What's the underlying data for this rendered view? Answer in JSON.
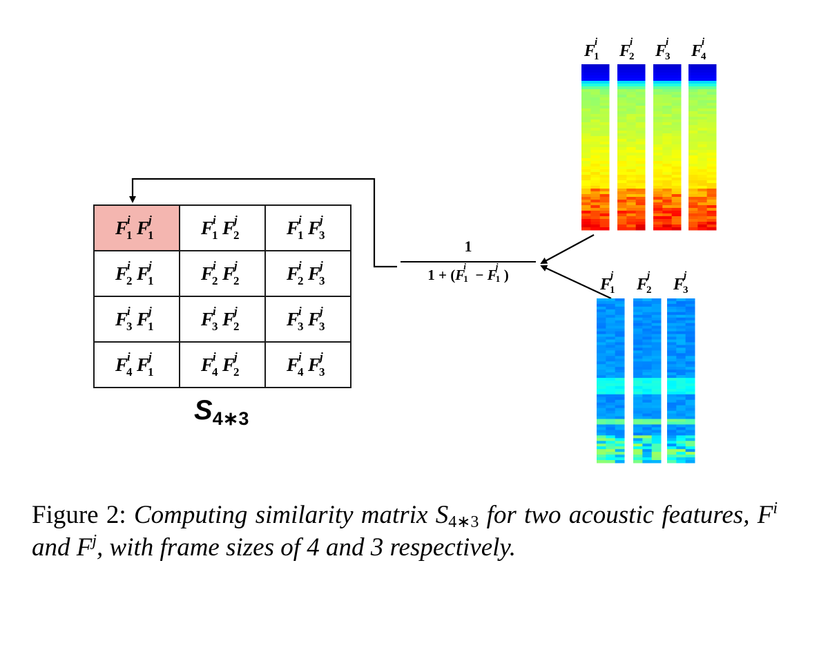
{
  "figure": {
    "matrix": {
      "rows": [
        [
          {
            "i": "1",
            "j": "1"
          },
          {
            "i": "1",
            "j": "2"
          },
          {
            "i": "1",
            "j": "3"
          }
        ],
        [
          {
            "i": "2",
            "j": "1"
          },
          {
            "i": "2",
            "j": "2"
          },
          {
            "i": "2",
            "j": "3"
          }
        ],
        [
          {
            "i": "3",
            "j": "1"
          },
          {
            "i": "3",
            "j": "2"
          },
          {
            "i": "3",
            "j": "3"
          }
        ],
        [
          {
            "i": "4",
            "j": "1"
          },
          {
            "i": "4",
            "j": "2"
          },
          {
            "i": "4",
            "j": "3"
          }
        ]
      ],
      "symbol": "F",
      "sup_i": "i",
      "sup_j": "j",
      "highlight_color": "#f4b6b0",
      "label": "S",
      "label_sub": "4∗3"
    },
    "formula": {
      "numerator": "1",
      "denominator_prefix": "1 + (",
      "minus": " − ",
      "denominator_suffix": ")",
      "sub": "1"
    },
    "spectrogram_i": {
      "labels": [
        "1",
        "2",
        "3",
        "4"
      ],
      "colormap": "jet",
      "dominant": "green-yellow"
    },
    "spectrogram_j": {
      "labels": [
        "1",
        "2",
        "3"
      ],
      "colormap": "jet",
      "dominant": "blue"
    }
  },
  "caption": {
    "prefix": "Figure 2:",
    "text_1": "Computing similarity matrix",
    "S": "S",
    "S_sub": "4∗3",
    "text_2": "for two acoustic features,",
    "F": "F",
    "sup_i": "i",
    "and": "and",
    "sup_j": "j",
    "text_3": ", with frame sizes of 4 and 3 respectively."
  }
}
